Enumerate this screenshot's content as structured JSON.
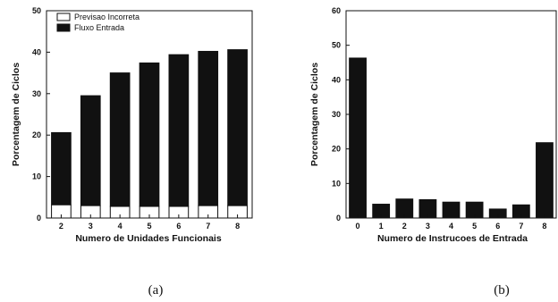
{
  "chart_data": [
    {
      "type": "bar",
      "stacked": true,
      "caption": "(a)",
      "xlabel": "Numero de Unidades Funcionais",
      "ylabel": "Porcentagem de Ciclos",
      "ylim": [
        0,
        50
      ],
      "yticks": [
        0,
        10,
        20,
        30,
        40,
        50
      ],
      "categories": [
        "2",
        "3",
        "4",
        "5",
        "6",
        "7",
        "8"
      ],
      "legend_position": "top-left",
      "series": [
        {
          "name": "Previsao Incorreta",
          "color": "#ffffff",
          "values": [
            3.2,
            3.0,
            2.8,
            2.8,
            2.8,
            3.0,
            3.0
          ]
        },
        {
          "name": "Fluxo Entrada",
          "color": "#111111",
          "values": [
            17.4,
            26.5,
            32.2,
            34.6,
            36.6,
            37.2,
            37.6
          ]
        }
      ]
    },
    {
      "type": "bar",
      "caption": "(b)",
      "xlabel": "Numero de Instrucoes de Entrada",
      "ylabel": "Porcentagem de Ciclos",
      "ylim": [
        0,
        60
      ],
      "yticks": [
        0,
        10,
        20,
        30,
        40,
        50,
        60
      ],
      "categories": [
        "0",
        "1",
        "2",
        "3",
        "4",
        "5",
        "6",
        "7",
        "8"
      ],
      "series": [
        {
          "color": "#111111",
          "values": [
            46.3,
            4.0,
            5.5,
            5.3,
            4.6,
            4.6,
            2.6,
            3.8,
            21.8
          ]
        }
      ]
    }
  ]
}
